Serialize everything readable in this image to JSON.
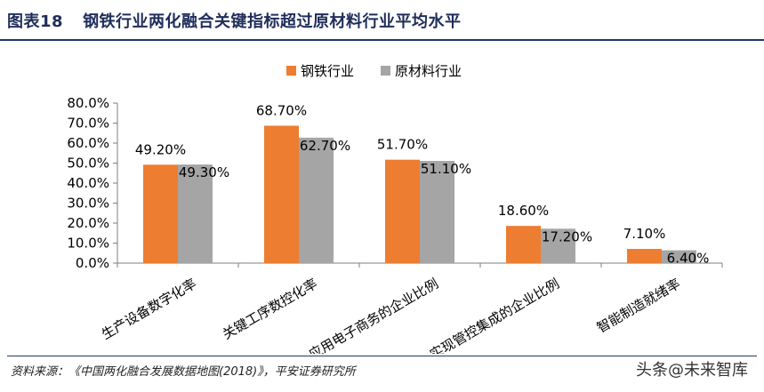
{
  "header": {
    "figure_no": "图表18",
    "title": "钢铁行业两化融合关键指标超过原材料行业平均水平"
  },
  "chart_data": {
    "type": "bar",
    "title": "",
    "xlabel": "",
    "ylabel": "",
    "ylim": [
      0,
      80
    ],
    "yticks": [
      "0.0%",
      "10.0%",
      "20.0%",
      "30.0%",
      "40.0%",
      "50.0%",
      "60.0%",
      "70.0%",
      "80.0%"
    ],
    "grid": false,
    "legend_position": "top-center",
    "categories": [
      "生产设备数字化率",
      "关键工序数控化率",
      "应用电子商务的企业比例",
      "实现管控集成的企业比例",
      "智能制造就绪率"
    ],
    "series": [
      {
        "name": "钢铁行业",
        "color": "#ed7d31",
        "values": [
          49.2,
          68.7,
          51.7,
          18.6,
          7.1
        ],
        "labels": [
          "49.20%",
          "68.70%",
          "51.70%",
          "18.60%",
          "7.10%"
        ]
      },
      {
        "name": "原材料行业",
        "color": "#a5a5a5",
        "values": [
          49.3,
          62.7,
          51.1,
          17.2,
          6.4
        ],
        "labels": [
          "49.30%",
          "62.70%",
          "51.10%",
          "17.20%",
          "6.40%"
        ]
      }
    ]
  },
  "footer": {
    "source": "资料来源：《中国两化融合发展数据地图(2018)》，平安证券研究所",
    "watermark_brand": "头条",
    "watermark_account": "@未来智库"
  }
}
